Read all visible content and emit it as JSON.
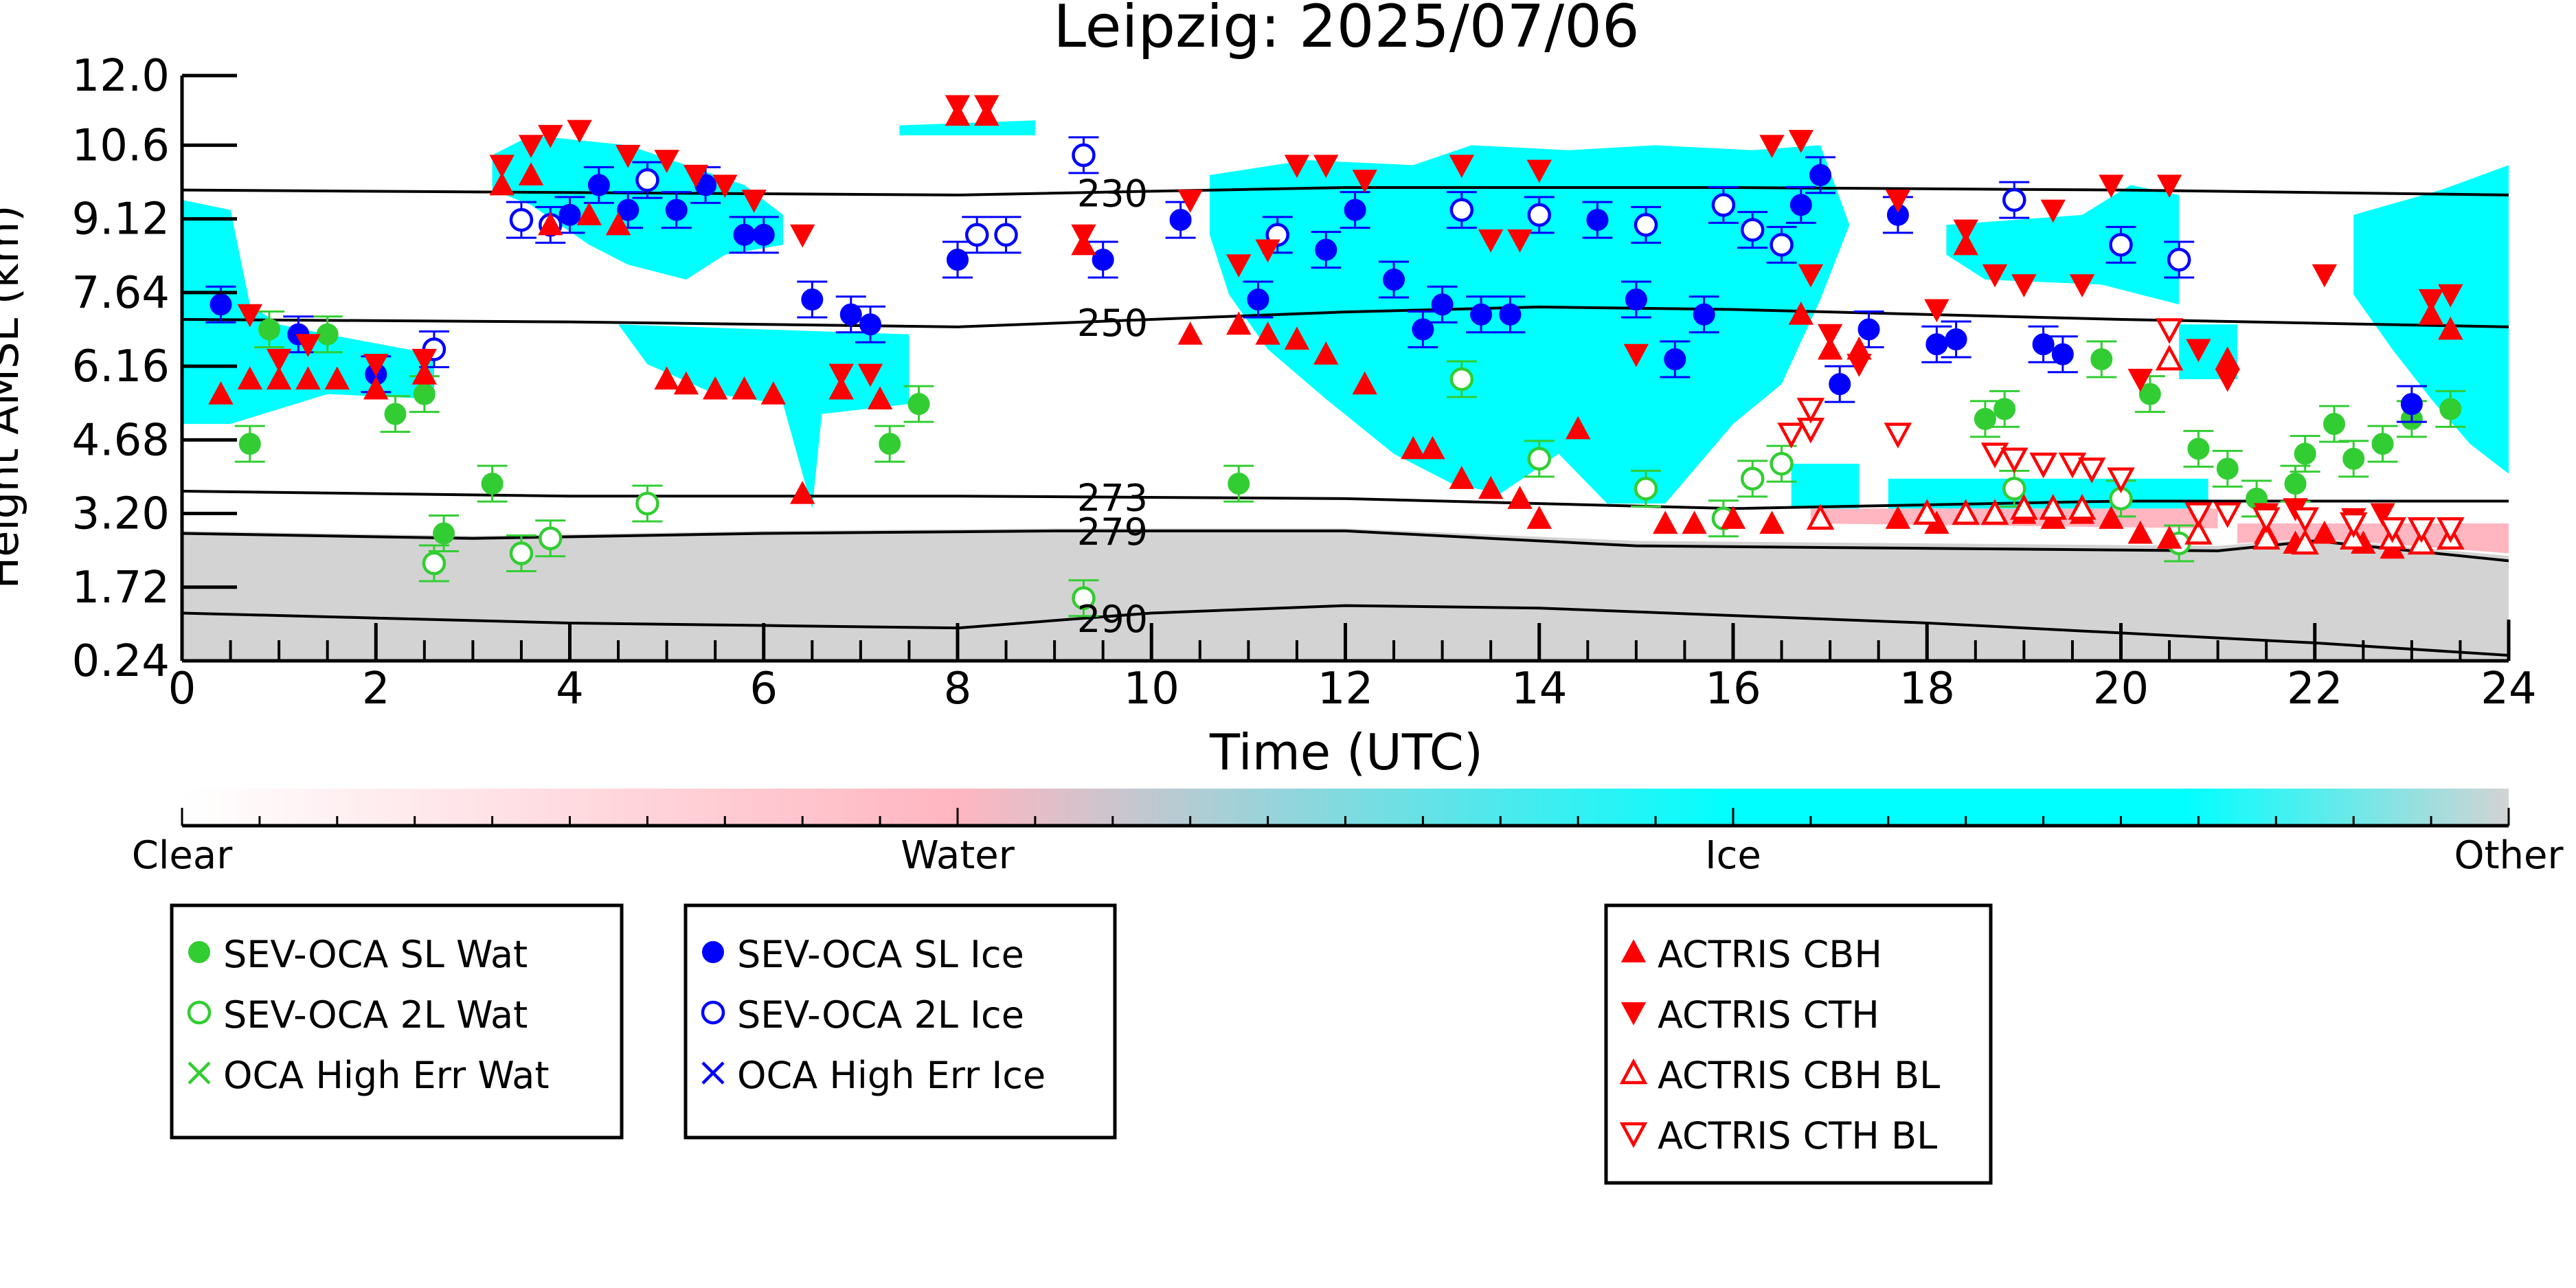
{
  "chart_data": {
    "type": "scatter",
    "title": "Leipzig: 2025/07/06",
    "xlabel": "Time (UTC)",
    "ylabel": "Height AMSL (km)",
    "xlim": [
      0,
      24
    ],
    "ylim": [
      0.24,
      12.0
    ],
    "x_ticks": [
      "0",
      "2",
      "4",
      "6",
      "8",
      "10",
      "12",
      "14",
      "16",
      "18",
      "20",
      "22",
      "24"
    ],
    "y_ticks": [
      "0.24",
      "1.72",
      "3.20",
      "4.68",
      "6.16",
      "7.64",
      "9.12",
      "10.6",
      "12.0"
    ],
    "colors": {
      "ice": "#00ffff",
      "water": "#ffb6c1",
      "other": "#d3d3d3",
      "sl_wat": "#32cd32",
      "ice_marker": "#0000ff",
      "actris": "#ff0000"
    },
    "colorbar": {
      "labels": [
        "Clear",
        "Water",
        "Ice",
        "Other"
      ]
    },
    "isotherms": [
      {
        "label": "230",
        "label_x": 9.3,
        "x": [
          0,
          4,
          8,
          12,
          16,
          20,
          24
        ],
        "y": [
          9.7,
          9.65,
          9.6,
          9.75,
          9.75,
          9.7,
          9.6
        ]
      },
      {
        "label": "250",
        "label_x": 9.3,
        "x": [
          0,
          4,
          8,
          12,
          14,
          16,
          20,
          24
        ],
        "y": [
          7.1,
          7.05,
          6.95,
          7.25,
          7.35,
          7.3,
          7.1,
          6.95
        ]
      },
      {
        "label": "273",
        "label_x": 9.3,
        "x": [
          0,
          4,
          8,
          12,
          16,
          20,
          24
        ],
        "y": [
          3.65,
          3.55,
          3.55,
          3.5,
          3.3,
          3.45,
          3.45
        ]
      },
      {
        "label": "279",
        "label_x": 9.3,
        "x": [
          0,
          3,
          6,
          9,
          12,
          15,
          18,
          21,
          22,
          24
        ],
        "y": [
          2.8,
          2.7,
          2.8,
          2.85,
          2.85,
          2.55,
          2.5,
          2.45,
          2.65,
          2.25
        ]
      },
      {
        "label": "290",
        "label_x": 9.3,
        "x": [
          0,
          2,
          4,
          6,
          8,
          10,
          12,
          14,
          16,
          18,
          20,
          22,
          24
        ],
        "y": [
          1.2,
          1.1,
          1.0,
          0.95,
          0.9,
          1.2,
          1.35,
          1.3,
          1.15,
          1.0,
          0.8,
          0.6,
          0.35
        ]
      }
    ],
    "legends": [
      {
        "entries": [
          {
            "label": "SEV-OCA SL Wat",
            "marker": "circle-filled",
            "color": "#32cd32"
          },
          {
            "label": "SEV-OCA 2L Wat",
            "marker": "circle-open",
            "color": "#32cd32"
          },
          {
            "label": "OCA High Err Wat",
            "marker": "x",
            "color": "#32cd32"
          }
        ]
      },
      {
        "entries": [
          {
            "label": "SEV-OCA SL Ice",
            "marker": "circle-filled",
            "color": "#0000ff"
          },
          {
            "label": "SEV-OCA 2L Ice",
            "marker": "circle-open",
            "color": "#0000ff"
          },
          {
            "label": "OCA High Err Ice",
            "marker": "x",
            "color": "#0000ff"
          }
        ]
      },
      {
        "entries": [
          {
            "label": "ACTRIS CBH",
            "marker": "tri-up",
            "color": "#ff0000"
          },
          {
            "label": "ACTRIS CTH",
            "marker": "tri-down",
            "color": "#ff0000"
          },
          {
            "label": "ACTRIS CBH BL",
            "marker": "tri-up-open",
            "color": "#ff0000"
          },
          {
            "label": "ACTRIS CTH BL",
            "marker": "tri-down-open",
            "color": "#ff0000"
          }
        ]
      }
    ],
    "series": [
      {
        "name": "SEV-OCA SL Wat",
        "marker": "circle-filled",
        "color": "#32cd32",
        "points": [
          [
            0.7,
            4.6
          ],
          [
            0.9,
            6.9
          ],
          [
            1.5,
            6.8
          ],
          [
            2.2,
            5.2
          ],
          [
            2.5,
            5.6
          ],
          [
            2.7,
            2.8
          ],
          [
            3.2,
            3.8
          ],
          [
            7.3,
            4.6
          ],
          [
            7.6,
            5.4
          ],
          [
            10.9,
            3.8
          ],
          [
            18.6,
            5.1
          ],
          [
            18.8,
            5.3
          ],
          [
            19.8,
            6.3
          ],
          [
            20.3,
            5.6
          ],
          [
            20.8,
            4.5
          ],
          [
            21.1,
            4.1
          ],
          [
            21.4,
            3.5
          ],
          [
            21.8,
            3.8
          ],
          [
            21.9,
            4.4
          ],
          [
            22.2,
            5.0
          ],
          [
            22.4,
            4.3
          ],
          [
            22.7,
            4.6
          ],
          [
            23.0,
            5.1
          ],
          [
            23.4,
            5.3
          ]
        ]
      },
      {
        "name": "SEV-OCA 2L Wat",
        "marker": "circle-open",
        "color": "#32cd32",
        "points": [
          [
            2.6,
            2.2
          ],
          [
            3.5,
            2.4
          ],
          [
            3.8,
            2.7
          ],
          [
            4.8,
            3.4
          ],
          [
            9.3,
            1.5
          ],
          [
            13.2,
            5.9
          ],
          [
            14.0,
            4.3
          ],
          [
            15.1,
            3.7
          ],
          [
            16.2,
            3.9
          ],
          [
            16.5,
            4.2
          ],
          [
            15.9,
            3.1
          ],
          [
            18.9,
            3.7
          ],
          [
            20.0,
            3.5
          ],
          [
            20.6,
            2.6
          ]
        ]
      },
      {
        "name": "SEV-OCA SL Ice",
        "marker": "circle-filled",
        "color": "#0000ff",
        "points": [
          [
            0.4,
            7.4
          ],
          [
            1.2,
            6.8
          ],
          [
            2.0,
            6.0
          ],
          [
            4.0,
            9.2
          ],
          [
            4.3,
            9.8
          ],
          [
            4.6,
            9.3
          ],
          [
            5.1,
            9.3
          ],
          [
            5.4,
            9.8
          ],
          [
            5.8,
            8.8
          ],
          [
            6.0,
            8.8
          ],
          [
            6.5,
            7.5
          ],
          [
            6.9,
            7.2
          ],
          [
            7.1,
            7.0
          ],
          [
            8.0,
            8.3
          ],
          [
            9.5,
            8.3
          ],
          [
            10.3,
            9.1
          ],
          [
            11.1,
            7.5
          ],
          [
            11.8,
            8.5
          ],
          [
            12.1,
            9.3
          ],
          [
            12.5,
            7.9
          ],
          [
            12.8,
            6.9
          ],
          [
            13.0,
            7.4
          ],
          [
            13.4,
            7.2
          ],
          [
            13.7,
            7.2
          ],
          [
            14.6,
            9.1
          ],
          [
            15.0,
            7.5
          ],
          [
            15.4,
            6.3
          ],
          [
            15.7,
            7.2
          ],
          [
            16.7,
            9.4
          ],
          [
            16.9,
            10.0
          ],
          [
            17.1,
            5.8
          ],
          [
            17.4,
            6.9
          ],
          [
            17.7,
            9.2
          ],
          [
            18.1,
            6.6
          ],
          [
            18.3,
            6.7
          ],
          [
            19.2,
            6.6
          ],
          [
            19.4,
            6.4
          ],
          [
            23.0,
            5.4
          ]
        ]
      },
      {
        "name": "SEV-OCA 2L Ice",
        "marker": "circle-open",
        "color": "#0000ff",
        "points": [
          [
            2.6,
            6.5
          ],
          [
            3.5,
            9.1
          ],
          [
            3.8,
            9.0
          ],
          [
            4.8,
            9.9
          ],
          [
            8.2,
            8.8
          ],
          [
            8.5,
            8.8
          ],
          [
            9.3,
            10.4
          ],
          [
            11.3,
            8.8
          ],
          [
            13.2,
            9.3
          ],
          [
            14.0,
            9.2
          ],
          [
            15.1,
            9.0
          ],
          [
            15.9,
            9.4
          ],
          [
            16.2,
            8.9
          ],
          [
            16.5,
            8.6
          ],
          [
            18.9,
            9.5
          ],
          [
            20.0,
            8.6
          ],
          [
            20.6,
            8.3
          ]
        ]
      },
      {
        "name": "ACTRIS CBH",
        "marker": "tri-up",
        "color": "#ff0000",
        "points": [
          [
            0.4,
            5.6
          ],
          [
            0.7,
            5.9
          ],
          [
            1.0,
            5.9
          ],
          [
            1.3,
            5.9
          ],
          [
            1.6,
            5.9
          ],
          [
            2.0,
            5.7
          ],
          [
            2.5,
            6.0
          ],
          [
            3.3,
            9.8
          ],
          [
            3.6,
            10.0
          ],
          [
            3.8,
            9.0
          ],
          [
            4.2,
            9.2
          ],
          [
            4.5,
            9.0
          ],
          [
            5.0,
            5.9
          ],
          [
            5.2,
            5.8
          ],
          [
            5.5,
            5.7
          ],
          [
            5.8,
            5.7
          ],
          [
            6.1,
            5.6
          ],
          [
            6.4,
            3.6
          ],
          [
            6.8,
            5.7
          ],
          [
            7.2,
            5.5
          ],
          [
            8.0,
            11.2
          ],
          [
            8.3,
            11.2
          ],
          [
            9.3,
            8.6
          ],
          [
            10.4,
            6.8
          ],
          [
            10.9,
            7.0
          ],
          [
            11.2,
            6.8
          ],
          [
            11.5,
            6.7
          ],
          [
            11.8,
            6.4
          ],
          [
            12.2,
            5.8
          ],
          [
            12.7,
            4.5
          ],
          [
            12.9,
            4.5
          ],
          [
            13.2,
            3.9
          ],
          [
            13.5,
            3.7
          ],
          [
            13.8,
            3.5
          ],
          [
            14.0,
            3.1
          ],
          [
            14.4,
            4.9
          ],
          [
            15.3,
            3.0
          ],
          [
            15.6,
            3.0
          ],
          [
            16.0,
            3.1
          ],
          [
            16.4,
            3.0
          ],
          [
            16.7,
            7.2
          ],
          [
            17.0,
            6.5
          ],
          [
            17.3,
            6.5
          ],
          [
            17.7,
            3.1
          ],
          [
            18.1,
            3.0
          ],
          [
            18.4,
            8.6
          ],
          [
            18.7,
            3.2
          ],
          [
            19.0,
            3.2
          ],
          [
            19.3,
            3.1
          ],
          [
            19.6,
            3.2
          ],
          [
            19.9,
            3.1
          ],
          [
            20.2,
            2.8
          ],
          [
            20.5,
            2.7
          ],
          [
            20.8,
            2.8
          ],
          [
            21.1,
            6.3
          ],
          [
            21.5,
            2.8
          ],
          [
            21.8,
            2.6
          ],
          [
            22.1,
            2.8
          ],
          [
            22.5,
            2.6
          ],
          [
            22.8,
            2.5
          ],
          [
            23.2,
            7.2
          ],
          [
            23.4,
            6.9
          ]
        ]
      },
      {
        "name": "ACTRIS CTH",
        "marker": "tri-down",
        "color": "#ff0000",
        "points": [
          [
            0.7,
            7.2
          ],
          [
            1.0,
            6.3
          ],
          [
            1.3,
            6.6
          ],
          [
            2.0,
            6.2
          ],
          [
            2.5,
            6.3
          ],
          [
            3.3,
            10.2
          ],
          [
            3.6,
            10.6
          ],
          [
            3.8,
            10.8
          ],
          [
            4.1,
            10.9
          ],
          [
            4.6,
            10.4
          ],
          [
            5.0,
            10.3
          ],
          [
            5.3,
            10.0
          ],
          [
            5.6,
            9.8
          ],
          [
            5.9,
            9.5
          ],
          [
            6.4,
            8.8
          ],
          [
            6.8,
            6.0
          ],
          [
            7.1,
            6.0
          ],
          [
            8.0,
            11.4
          ],
          [
            8.3,
            11.4
          ],
          [
            9.3,
            8.8
          ],
          [
            10.4,
            9.5
          ],
          [
            10.9,
            8.2
          ],
          [
            11.2,
            8.5
          ],
          [
            11.5,
            10.2
          ],
          [
            11.8,
            10.2
          ],
          [
            12.2,
            9.9
          ],
          [
            13.2,
            10.2
          ],
          [
            13.5,
            8.7
          ],
          [
            13.8,
            8.7
          ],
          [
            14.0,
            10.1
          ],
          [
            15.0,
            6.4
          ],
          [
            16.4,
            10.6
          ],
          [
            16.7,
            10.7
          ],
          [
            16.8,
            8.0
          ],
          [
            17.0,
            6.8
          ],
          [
            17.3,
            6.2
          ],
          [
            17.7,
            9.5
          ],
          [
            18.1,
            7.3
          ],
          [
            18.4,
            8.9
          ],
          [
            18.7,
            8.0
          ],
          [
            19.0,
            7.8
          ],
          [
            19.3,
            9.3
          ],
          [
            19.6,
            7.8
          ],
          [
            19.9,
            9.8
          ],
          [
            20.2,
            5.9
          ],
          [
            20.5,
            9.8
          ],
          [
            20.8,
            6.5
          ],
          [
            21.1,
            5.9
          ],
          [
            21.5,
            3.2
          ],
          [
            21.8,
            3.3
          ],
          [
            22.1,
            8.0
          ],
          [
            22.4,
            3.1
          ],
          [
            22.7,
            3.2
          ],
          [
            23.2,
            7.5
          ],
          [
            23.4,
            7.6
          ]
        ]
      },
      {
        "name": "ACTRIS CBH BL",
        "marker": "tri-up-open",
        "color": "#ff0000",
        "points": [
          [
            16.9,
            3.1
          ],
          [
            18.0,
            3.2
          ],
          [
            18.4,
            3.2
          ],
          [
            18.7,
            3.2
          ],
          [
            19.0,
            3.3
          ],
          [
            19.3,
            3.3
          ],
          [
            19.6,
            3.3
          ],
          [
            20.5,
            6.3
          ],
          [
            20.8,
            2.8
          ],
          [
            21.5,
            2.7
          ],
          [
            21.9,
            2.6
          ],
          [
            22.4,
            2.7
          ],
          [
            22.8,
            2.7
          ],
          [
            23.1,
            2.6
          ],
          [
            23.4,
            2.7
          ]
        ]
      },
      {
        "name": "ACTRIS CTH BL",
        "marker": "tri-down-open",
        "color": "#ff0000",
        "points": [
          [
            16.6,
            4.8
          ],
          [
            16.8,
            4.9
          ],
          [
            16.8,
            5.3
          ],
          [
            17.7,
            4.8
          ],
          [
            18.7,
            4.4
          ],
          [
            18.9,
            4.3
          ],
          [
            19.2,
            4.2
          ],
          [
            19.5,
            4.2
          ],
          [
            19.7,
            4.1
          ],
          [
            20.0,
            3.9
          ],
          [
            20.5,
            6.9
          ],
          [
            20.8,
            3.2
          ],
          [
            21.1,
            3.2
          ],
          [
            21.5,
            3.1
          ],
          [
            21.9,
            3.1
          ],
          [
            22.4,
            3.0
          ],
          [
            22.8,
            2.9
          ],
          [
            23.1,
            2.9
          ],
          [
            23.4,
            2.9
          ]
        ]
      }
    ]
  }
}
